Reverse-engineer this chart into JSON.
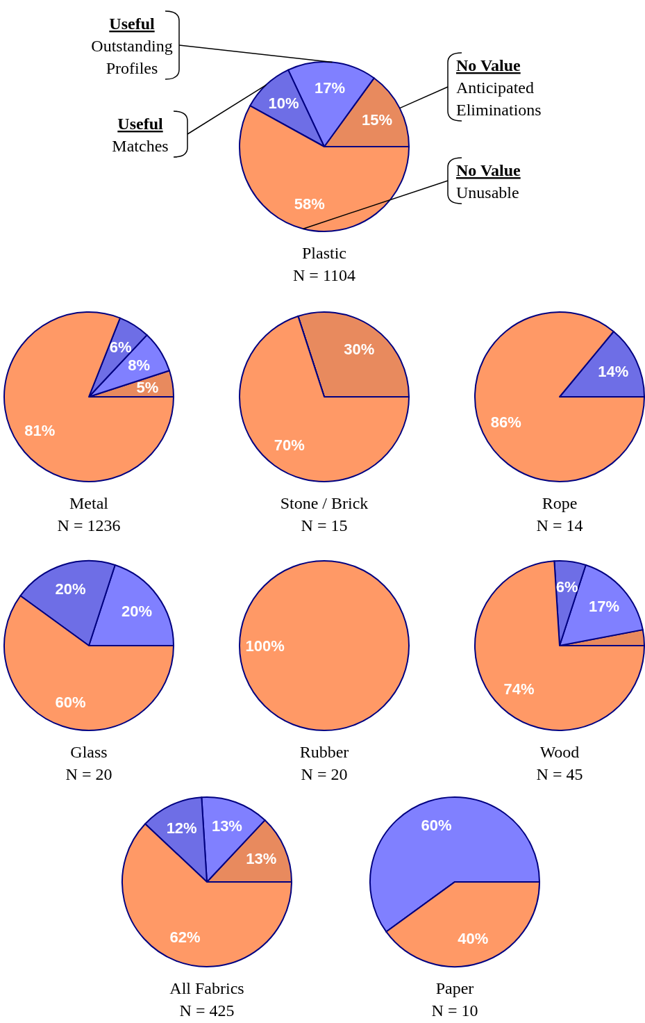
{
  "chart_data": [
    {
      "type": "pie",
      "title": "Plastic",
      "subtitle": "N = 1104",
      "categories": [
        "Anticipated Eliminations",
        "Outstanding Profiles",
        "Matches",
        "Unusable"
      ],
      "annotations": [
        "No Value",
        "Useful",
        "Useful",
        "No Value"
      ],
      "values": [
        15,
        17,
        10,
        58
      ],
      "value_labels": [
        "15%",
        "17%",
        "10%",
        "58%"
      ],
      "colors": [
        "#e88a5e",
        "#8080ff",
        "#6e6ee6",
        "#ff9966"
      ]
    },
    {
      "type": "pie",
      "title": "Metal",
      "subtitle": "N = 1236",
      "categories": [
        null,
        null,
        null,
        null
      ],
      "values": [
        5,
        8,
        6,
        81
      ],
      "value_labels": [
        "5%",
        "8%",
        "6%",
        "81%"
      ],
      "colors": [
        "#e88a5e",
        "#8080ff",
        "#6e6ee6",
        "#ff9966"
      ]
    },
    {
      "type": "pie",
      "title": "Stone / Brick",
      "subtitle": "N = 15",
      "categories": [
        null,
        null,
        null,
        null
      ],
      "values": [
        30,
        0,
        0,
        70
      ],
      "value_labels": [
        "30%",
        null,
        null,
        "70%"
      ],
      "colors": [
        "#e88a5e",
        "#8080ff",
        "#6e6ee6",
        "#ff9966"
      ]
    },
    {
      "type": "pie",
      "title": "Rope",
      "subtitle": "N = 14",
      "categories": [
        null,
        null,
        null,
        null
      ],
      "values": [
        0,
        0,
        14,
        86
      ],
      "value_labels": [
        null,
        null,
        "14%",
        "86%"
      ],
      "colors": [
        "#e88a5e",
        "#8080ff",
        "#6e6ee6",
        "#ff9966"
      ]
    },
    {
      "type": "pie",
      "title": "Glass",
      "subtitle": "N = 20",
      "categories": [
        null,
        null,
        null,
        null
      ],
      "values": [
        0,
        20,
        20,
        60
      ],
      "value_labels": [
        null,
        "20%",
        "20%",
        "60%"
      ],
      "colors": [
        "#e88a5e",
        "#8080ff",
        "#6e6ee6",
        "#ff9966"
      ]
    },
    {
      "type": "pie",
      "title": "Rubber",
      "subtitle": "N = 20",
      "categories": [
        null,
        null,
        null,
        null
      ],
      "values": [
        0,
        0,
        0,
        100
      ],
      "value_labels": [
        null,
        null,
        null,
        "100%"
      ],
      "colors": [
        "#e88a5e",
        "#8080ff",
        "#6e6ee6",
        "#ff9966"
      ]
    },
    {
      "type": "pie",
      "title": "Wood",
      "subtitle": "N = 45",
      "categories": [
        null,
        null,
        null,
        null
      ],
      "values": [
        3,
        17,
        6,
        74
      ],
      "value_labels": [
        null,
        "17%",
        "6%",
        "74%"
      ],
      "colors": [
        "#e88a5e",
        "#8080ff",
        "#6e6ee6",
        "#ff9966"
      ]
    },
    {
      "type": "pie",
      "title": "All Fabrics",
      "subtitle": "N = 425",
      "categories": [
        null,
        null,
        null,
        null
      ],
      "values": [
        13,
        13,
        12,
        62
      ],
      "value_labels": [
        "13%",
        "13%",
        "12%",
        "62%"
      ],
      "colors": [
        "#e88a5e",
        "#8080ff",
        "#6e6ee6",
        "#ff9966"
      ]
    },
    {
      "type": "pie",
      "title": "Paper",
      "subtitle": "N = 10",
      "categories": [
        null,
        null,
        null,
        null
      ],
      "values": [
        0,
        60,
        0,
        40
      ],
      "value_labels": [
        null,
        "60%",
        null,
        "40%"
      ],
      "colors": [
        "#e88a5e",
        "#8080ff",
        "#6e6ee6",
        "#ff9966"
      ]
    }
  ]
}
